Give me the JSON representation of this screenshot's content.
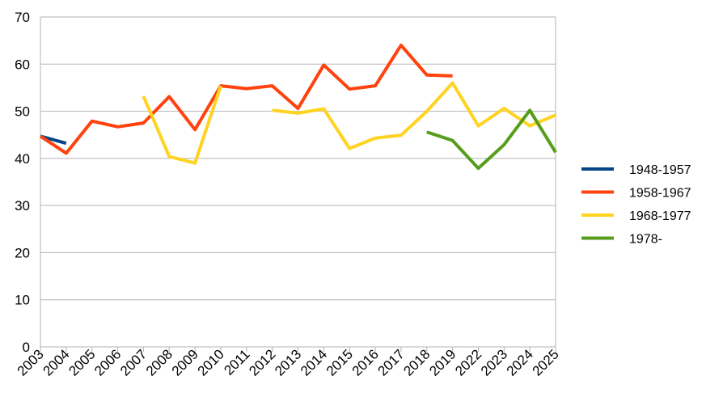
{
  "chart_data": {
    "type": "line",
    "title": "",
    "xlabel": "",
    "ylabel": "",
    "ylim": [
      0,
      70
    ],
    "yticks": [
      0,
      10,
      20,
      30,
      40,
      50,
      60,
      70
    ],
    "grid": "horizontal",
    "legend_position": "right",
    "categories": [
      "2003",
      "2004",
      "2005",
      "2006",
      "2007",
      "2008",
      "2009",
      "2010",
      "2011",
      "2012",
      "2013",
      "2014",
      "2015",
      "2016",
      "2017",
      "2018",
      "2019",
      "2022",
      "2023",
      "2024",
      "2025"
    ],
    "series": [
      {
        "name": "1948-1957",
        "color": "#004586",
        "values": [
          44.7,
          43.2,
          null,
          null,
          null,
          null,
          null,
          null,
          null,
          null,
          null,
          null,
          null,
          null,
          null,
          null,
          null,
          null,
          null,
          null,
          null
        ]
      },
      {
        "name": "1958-1967",
        "color": "#ff420e",
        "values": [
          44.7,
          41.1,
          47.9,
          46.7,
          47.5,
          53.1,
          46.1,
          55.4,
          54.8,
          55.4,
          50.6,
          59.8,
          54.7,
          55.4,
          64.0,
          57.7,
          57.5,
          null,
          null,
          null,
          null
        ]
      },
      {
        "name": "1968-1977",
        "color": "#ffd320",
        "values": [
          null,
          null,
          null,
          null,
          53.2,
          40.4,
          39.0,
          55.4,
          null,
          50.2,
          49.6,
          50.5,
          42.1,
          44.3,
          44.9,
          50.0,
          56.0,
          46.9,
          50.6,
          46.9,
          49.2
        ]
      },
      {
        "name": "1978-",
        "color": "#579d1c",
        "values": [
          null,
          null,
          null,
          null,
          null,
          null,
          null,
          null,
          null,
          null,
          null,
          null,
          null,
          null,
          null,
          45.6,
          43.8,
          37.9,
          42.9,
          50.2,
          41.3
        ]
      }
    ]
  }
}
